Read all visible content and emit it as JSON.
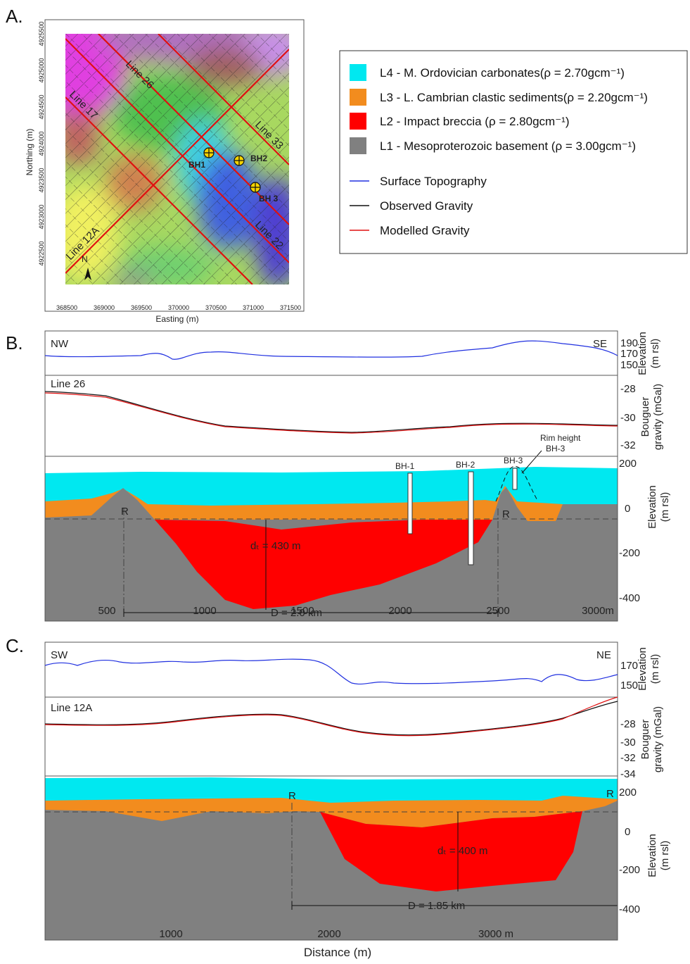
{
  "panel_a": {
    "label": "A.",
    "x_axis_title": "Easting (m)",
    "y_axis_title": "Northing (m)",
    "xticks": [
      368500,
      369000,
      369500,
      370000,
      370500,
      371000,
      371500
    ],
    "yticks": [
      4925500,
      4925000,
      4924500,
      4924000,
      4923500,
      4923000,
      4922500
    ],
    "north": "N",
    "lines": [
      "Line 26",
      "Line 17",
      "Line 33",
      "Line 22",
      "Line 12A"
    ],
    "boreholes": [
      "BH1",
      "BH2",
      "BH 3"
    ]
  },
  "legend": {
    "layers": [
      "L4 - M. Ordovician carbonates(ρ = 2.70gcm⁻¹)",
      "L3 - L. Cambrian clastic sediments(ρ = 2.20gcm⁻¹)",
      "L2 - Impact breccia  (ρ = 2.80gcm⁻¹)",
      "L1 - Mesoproterozoic basement  (ρ = 3.00gcm⁻¹)"
    ],
    "lines": [
      "Surface Topography",
      "Observed Gravity",
      "Modelled Gravity"
    ]
  },
  "panel_b": {
    "label": "B.",
    "left_end": "NW",
    "right_end": "SE",
    "line_name": "Line 26",
    "elevation_ticks": [
      190,
      170,
      150
    ],
    "gravity_ticks": [
      -28,
      -30,
      -32
    ],
    "section_ticks": [
      200,
      0,
      -200,
      -400
    ],
    "elevation_title": [
      "Elevation",
      "(m rsl)"
    ],
    "gravity_title": [
      "Bouguer",
      "gravity (mGal)"
    ],
    "section_title": [
      "Elevation",
      "(m rsl)"
    ],
    "xticks": [
      500,
      1000,
      1500,
      2000,
      2500,
      "3000m"
    ],
    "boreholes": [
      "BH-1",
      "BH-2",
      "BH-3"
    ],
    "rim_note": [
      "Rim height",
      "BH-3"
    ],
    "rim_markers": [
      "R",
      "R"
    ],
    "depth_label": "dₜ =  430 m",
    "diameter_label": "D = 2.0 km"
  },
  "panel_c": {
    "label": "C.",
    "left_end": "SW",
    "right_end": "NE",
    "line_name": "Line 12A",
    "elevation_ticks": [
      170,
      150
    ],
    "gravity_ticks": [
      -28,
      -30,
      -32,
      -34
    ],
    "section_ticks": [
      200,
      0,
      -200,
      -400
    ],
    "elevation_title": [
      "Elevation",
      "(m rsl)"
    ],
    "gravity_title": [
      "Bouguer",
      "gravity (mGal)"
    ],
    "section_title": [
      "Elevation",
      "(m rsl)"
    ],
    "xticks": [
      1000,
      2000,
      "3000 m"
    ],
    "x_axis_title": "Distance (m)",
    "rim_markers": [
      "R",
      "R"
    ],
    "depth_label": "dₜ =  400 m",
    "diameter_label": "D = 1.85 km"
  }
}
